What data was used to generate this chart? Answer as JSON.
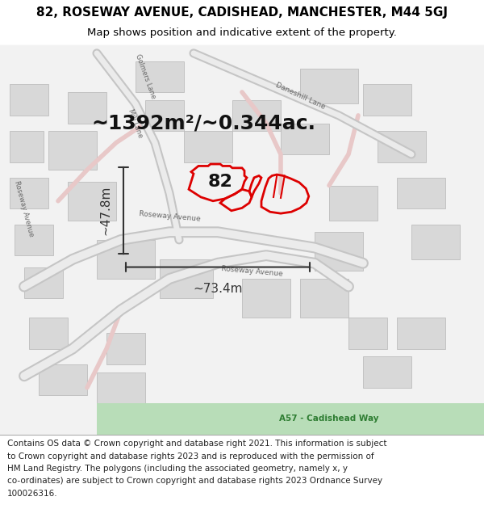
{
  "title_line1": "82, ROSEWAY AVENUE, CADISHEAD, MANCHESTER, M44 5GJ",
  "title_line2": "Map shows position and indicative extent of the property.",
  "title_fontsize": 11,
  "subtitle_fontsize": 9.5,
  "area_text": "~1392m²/~0.344ac.",
  "area_fontsize": 18,
  "label_82": "82",
  "label_82_fontsize": 16,
  "dim_width": "~73.4m",
  "dim_height": "~47.8m",
  "dim_fontsize": 11,
  "footer_lines": [
    "Contains OS data © Crown copyright and database right 2021. This information is subject",
    "to Crown copyright and database rights 2023 and is reproduced with the permission of",
    "HM Land Registry. The polygons (including the associated geometry, namely x, y",
    "co-ordinates) are subject to Crown copyright and database rights 2023 Ordnance Survey",
    "100026316."
  ],
  "footer_fontsize": 7.5,
  "map_bg": "#f2f2f2",
  "red_stroke": "#dd0000",
  "header_bg": "#ffffff",
  "footer_bg": "#ffffff",
  "dim_line_color": "#333333",
  "title_color": "#000000"
}
